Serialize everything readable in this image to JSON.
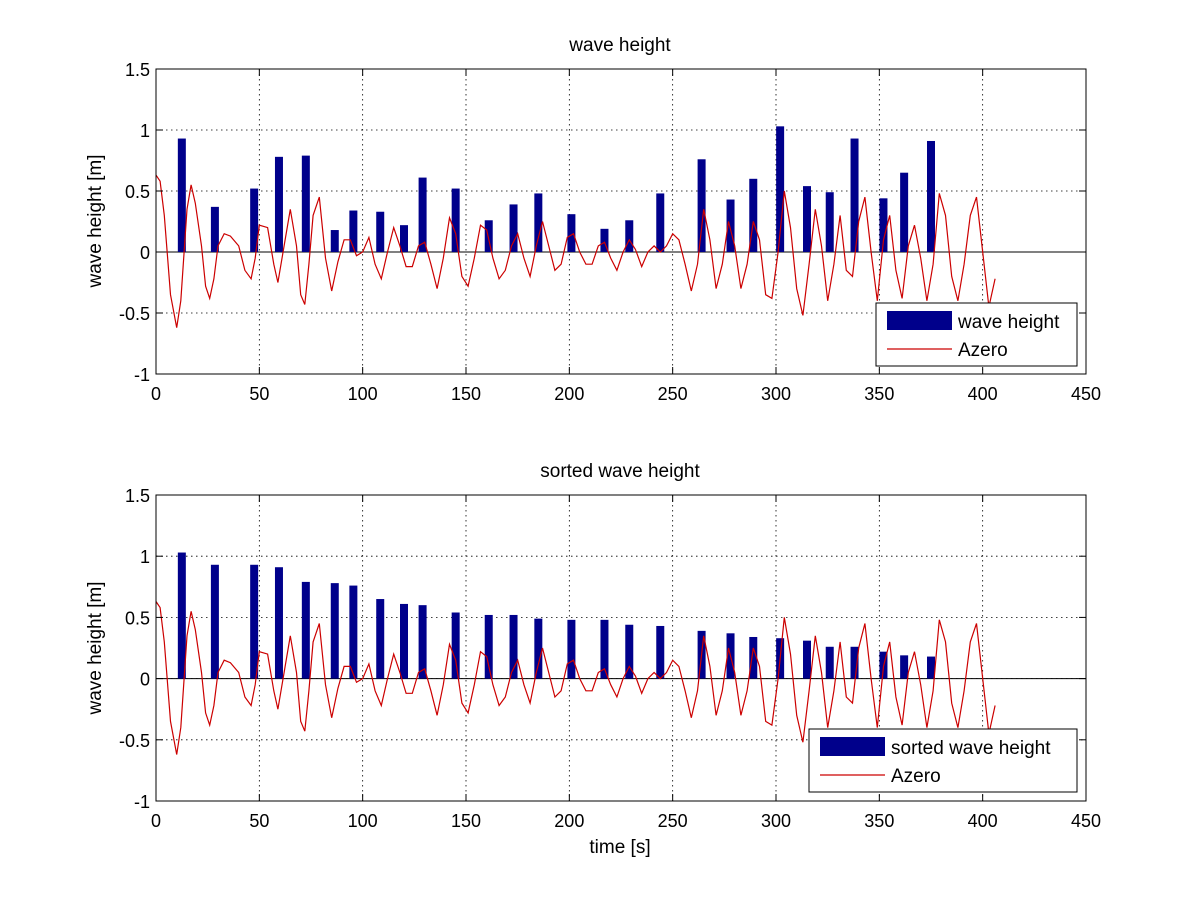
{
  "figure": {
    "background": "#ffffff",
    "bar_color": "#00008b",
    "line_color": "#cc0000"
  },
  "chart_data": [
    {
      "type": "bar",
      "title": "wave height",
      "xlabel": "",
      "ylabel": "wave height [m]",
      "xlim": [
        0,
        450
      ],
      "ylim": [
        -1,
        1.5
      ],
      "xticks": [
        "0",
        "50",
        "100",
        "150",
        "200",
        "250",
        "300",
        "350",
        "400",
        "450"
      ],
      "yticks": [
        "-1",
        "-0.5",
        "0",
        "0.5",
        "1",
        "1.5"
      ],
      "grid": true,
      "legend_position": "bottom-right",
      "series": [
        {
          "name": "wave height",
          "kind": "bar",
          "color": "#00008b",
          "x": [
            12.5,
            28.5,
            47.5,
            59.5,
            72.5,
            86.5,
            95.5,
            108.5,
            120,
            129,
            145,
            161,
            173,
            185,
            201,
            217,
            229,
            244,
            264,
            278,
            289,
            302,
            315,
            326,
            338,
            352,
            362,
            375
          ],
          "values": [
            0.93,
            0.37,
            0.52,
            0.78,
            0.79,
            0.18,
            0.34,
            0.33,
            0.22,
            0.61,
            0.52,
            0.26,
            0.39,
            0.48,
            0.31,
            0.19,
            0.26,
            0.48,
            0.76,
            0.43,
            0.6,
            1.03,
            0.54,
            0.49,
            0.93,
            0.44,
            0.65,
            0.91
          ]
        },
        {
          "name": "Azero",
          "kind": "line",
          "color": "#cc0000",
          "x": [
            0,
            2,
            4,
            7,
            10,
            12,
            15,
            17,
            19,
            22,
            24,
            26,
            28,
            30,
            33,
            36,
            40,
            43,
            46,
            48,
            50,
            54,
            57,
            59,
            62,
            65,
            68,
            70,
            72,
            74,
            76,
            79,
            82,
            85,
            88,
            91,
            94,
            97,
            100,
            103,
            106,
            109,
            112,
            115,
            118,
            121,
            124,
            127,
            130,
            133,
            136,
            139,
            142,
            145,
            148,
            151,
            154,
            157,
            160,
            163,
            166,
            169,
            172,
            175,
            178,
            181,
            184,
            187,
            190,
            193,
            196,
            199,
            202,
            205,
            208,
            211,
            214,
            217,
            220,
            223,
            226,
            229,
            232,
            235,
            238,
            241,
            244,
            247,
            250,
            253,
            256,
            259,
            262,
            265,
            268,
            271,
            274,
            277,
            280,
            283,
            286,
            289,
            292,
            295,
            298,
            301,
            304,
            307,
            310,
            313,
            316,
            319,
            322,
            325,
            328,
            331,
            334,
            337,
            340,
            343,
            346,
            349,
            352,
            355,
            358,
            361,
            364,
            367,
            370,
            373,
            376,
            379,
            382,
            385,
            388,
            391,
            394,
            397,
            400,
            403,
            406
          ],
          "values": [
            0.63,
            0.58,
            0.3,
            -0.35,
            -0.62,
            -0.4,
            0.35,
            0.55,
            0.4,
            0.05,
            -0.28,
            -0.38,
            -0.22,
            0.05,
            0.15,
            0.13,
            0.05,
            -0.15,
            -0.22,
            -0.05,
            0.22,
            0.2,
            -0.1,
            -0.25,
            0.05,
            0.35,
            0.05,
            -0.35,
            -0.43,
            -0.1,
            0.3,
            0.45,
            -0.05,
            -0.32,
            -0.08,
            0.1,
            0.1,
            -0.03,
            0.0,
            0.12,
            -0.1,
            -0.22,
            0.0,
            0.2,
            0.05,
            -0.12,
            -0.12,
            0.05,
            0.08,
            -0.1,
            -0.3,
            -0.05,
            0.28,
            0.15,
            -0.2,
            -0.28,
            -0.05,
            0.22,
            0.18,
            -0.05,
            -0.22,
            -0.15,
            0.05,
            0.15,
            -0.05,
            -0.2,
            0.05,
            0.25,
            0.05,
            -0.15,
            -0.1,
            0.12,
            0.15,
            0.0,
            -0.1,
            -0.1,
            0.05,
            0.08,
            -0.05,
            -0.15,
            0.0,
            0.1,
            0.02,
            -0.12,
            0.0,
            0.05,
            0.0,
            0.05,
            0.15,
            0.1,
            -0.1,
            -0.32,
            -0.1,
            0.35,
            0.1,
            -0.3,
            -0.1,
            0.25,
            0.05,
            -0.3,
            -0.1,
            0.25,
            0.1,
            -0.35,
            -0.38,
            0.0,
            0.5,
            0.2,
            -0.3,
            -0.52,
            -0.1,
            0.35,
            0.05,
            -0.4,
            -0.1,
            0.3,
            -0.15,
            -0.2,
            0.25,
            0.45,
            0.0,
            -0.4,
            0.1,
            0.3,
            -0.15,
            -0.38,
            0.05,
            0.22,
            -0.05,
            -0.4,
            -0.1,
            0.48,
            0.3,
            -0.2,
            -0.4,
            -0.1,
            0.3,
            0.45,
            0.0,
            -0.45,
            -0.22
          ]
        }
      ]
    },
    {
      "type": "bar",
      "title": "sorted wave height",
      "xlabel": "time [s]",
      "ylabel": "wave height [m]",
      "xlim": [
        0,
        450
      ],
      "ylim": [
        -1,
        1.5
      ],
      "xticks": [
        "0",
        "50",
        "100",
        "150",
        "200",
        "250",
        "300",
        "350",
        "400",
        "450"
      ],
      "yticks": [
        "-1",
        "-0.5",
        "0",
        "0.5",
        "1",
        "1.5"
      ],
      "grid": true,
      "legend_position": "bottom-right",
      "series": [
        {
          "name": "sorted wave height",
          "kind": "bar",
          "color": "#00008b",
          "x": [
            12.5,
            28.5,
            47.5,
            59.5,
            72.5,
            86.5,
            95.5,
            108.5,
            120,
            129,
            145,
            161,
            173,
            185,
            201,
            217,
            229,
            244,
            264,
            278,
            289,
            302,
            315,
            326,
            338,
            352,
            362,
            375
          ],
          "values": [
            1.03,
            0.93,
            0.93,
            0.91,
            0.79,
            0.78,
            0.76,
            0.65,
            0.61,
            0.6,
            0.54,
            0.52,
            0.52,
            0.49,
            0.48,
            0.48,
            0.44,
            0.43,
            0.39,
            0.37,
            0.34,
            0.33,
            0.31,
            0.26,
            0.26,
            0.22,
            0.19,
            0.18
          ]
        },
        {
          "name": "Azero",
          "kind": "line",
          "color": "#cc0000",
          "x": [
            0,
            2,
            4,
            7,
            10,
            12,
            15,
            17,
            19,
            22,
            24,
            26,
            28,
            30,
            33,
            36,
            40,
            43,
            46,
            48,
            50,
            54,
            57,
            59,
            62,
            65,
            68,
            70,
            72,
            74,
            76,
            79,
            82,
            85,
            88,
            91,
            94,
            97,
            100,
            103,
            106,
            109,
            112,
            115,
            118,
            121,
            124,
            127,
            130,
            133,
            136,
            139,
            142,
            145,
            148,
            151,
            154,
            157,
            160,
            163,
            166,
            169,
            172,
            175,
            178,
            181,
            184,
            187,
            190,
            193,
            196,
            199,
            202,
            205,
            208,
            211,
            214,
            217,
            220,
            223,
            226,
            229,
            232,
            235,
            238,
            241,
            244,
            247,
            250,
            253,
            256,
            259,
            262,
            265,
            268,
            271,
            274,
            277,
            280,
            283,
            286,
            289,
            292,
            295,
            298,
            301,
            304,
            307,
            310,
            313,
            316,
            319,
            322,
            325,
            328,
            331,
            334,
            337,
            340,
            343,
            346,
            349,
            352,
            355,
            358,
            361,
            364,
            367,
            370,
            373,
            376,
            379,
            382,
            385,
            388,
            391,
            394,
            397,
            400,
            403,
            406
          ],
          "values": [
            0.63,
            0.58,
            0.3,
            -0.35,
            -0.62,
            -0.4,
            0.35,
            0.55,
            0.4,
            0.05,
            -0.28,
            -0.38,
            -0.22,
            0.05,
            0.15,
            0.13,
            0.05,
            -0.15,
            -0.22,
            -0.05,
            0.22,
            0.2,
            -0.1,
            -0.25,
            0.05,
            0.35,
            0.05,
            -0.35,
            -0.43,
            -0.1,
            0.3,
            0.45,
            -0.05,
            -0.32,
            -0.08,
            0.1,
            0.1,
            -0.03,
            0.0,
            0.12,
            -0.1,
            -0.22,
            0.0,
            0.2,
            0.05,
            -0.12,
            -0.12,
            0.05,
            0.08,
            -0.1,
            -0.3,
            -0.05,
            0.28,
            0.15,
            -0.2,
            -0.28,
            -0.05,
            0.22,
            0.18,
            -0.05,
            -0.22,
            -0.15,
            0.05,
            0.15,
            -0.05,
            -0.2,
            0.05,
            0.25,
            0.05,
            -0.15,
            -0.1,
            0.12,
            0.15,
            0.0,
            -0.1,
            -0.1,
            0.05,
            0.08,
            -0.05,
            -0.15,
            0.0,
            0.1,
            0.02,
            -0.12,
            0.0,
            0.05,
            0.0,
            0.05,
            0.15,
            0.1,
            -0.1,
            -0.32,
            -0.1,
            0.35,
            0.1,
            -0.3,
            -0.1,
            0.25,
            0.05,
            -0.3,
            -0.1,
            0.25,
            0.1,
            -0.35,
            -0.38,
            0.0,
            0.5,
            0.2,
            -0.3,
            -0.52,
            -0.1,
            0.35,
            0.05,
            -0.4,
            -0.1,
            0.3,
            -0.15,
            -0.2,
            0.25,
            0.45,
            0.0,
            -0.4,
            0.1,
            0.3,
            -0.15,
            -0.38,
            0.05,
            0.22,
            -0.05,
            -0.4,
            -0.1,
            0.48,
            0.3,
            -0.2,
            -0.4,
            -0.1,
            0.3,
            0.45,
            0.0,
            -0.45,
            -0.22
          ]
        }
      ]
    }
  ]
}
